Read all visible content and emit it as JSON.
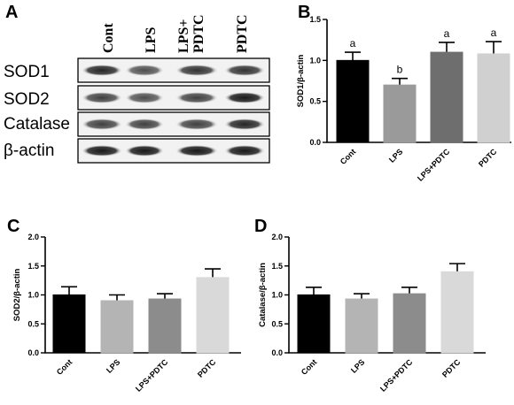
{
  "blot": {
    "panel_label": "A",
    "lanes": [
      "Cont",
      "LPS",
      "LPS+ PDTC",
      "PDTC"
    ],
    "lane_lines": [
      [
        "Cont"
      ],
      [
        "LPS"
      ],
      [
        "LPS+",
        "PDTC"
      ],
      [
        "PDTC"
      ]
    ],
    "rows": [
      {
        "label": "SOD1",
        "intensity": [
          0.85,
          0.7,
          0.8,
          0.8
        ]
      },
      {
        "label": "SOD2",
        "intensity": [
          0.75,
          0.7,
          0.75,
          0.9
        ]
      },
      {
        "label": "Catalase",
        "intensity": [
          0.75,
          0.75,
          0.75,
          0.85
        ]
      },
      {
        "label": "β-actin",
        "intensity": [
          0.9,
          0.9,
          0.9,
          0.9
        ]
      }
    ]
  },
  "chart_data": [
    {
      "panel_label": "B",
      "type": "bar",
      "categories": [
        "Cont",
        "LPS",
        "LPS+PDTC",
        "PDTC"
      ],
      "values": [
        1.0,
        0.7,
        1.1,
        1.08
      ],
      "errors": [
        0.1,
        0.08,
        0.12,
        0.15
      ],
      "significance": [
        "a",
        "b",
        "a",
        "a"
      ],
      "ylabel": "SOD1/β-actin",
      "ylim": [
        0,
        1.5
      ],
      "yticks": [
        "0.0",
        "0.5",
        "1.0",
        "1.5"
      ],
      "colors": [
        "#000000",
        "#9a9a9a",
        "#6e6e6e",
        "#d0d0d0"
      ]
    },
    {
      "panel_label": "C",
      "type": "bar",
      "categories": [
        "Cont",
        "LPS",
        "LPS+PDTC",
        "PDTC"
      ],
      "values": [
        1.0,
        0.9,
        0.93,
        1.3
      ],
      "errors": [
        0.14,
        0.1,
        0.09,
        0.15
      ],
      "ylabel": "SOD2/β-actin",
      "ylim": [
        0,
        2.0
      ],
      "yticks": [
        "0.0",
        "0.5",
        "1.0",
        "1.5",
        "2.0"
      ],
      "colors": [
        "#000000",
        "#b4b4b4",
        "#8c8c8c",
        "#d9d9d9"
      ]
    },
    {
      "panel_label": "D",
      "type": "bar",
      "categories": [
        "Cont",
        "LPS",
        "LPS+PDTC",
        "PDTC"
      ],
      "values": [
        1.0,
        0.93,
        1.02,
        1.4
      ],
      "errors": [
        0.13,
        0.09,
        0.11,
        0.14
      ],
      "ylabel": "Catalase/β-actin",
      "ylim": [
        0,
        2.0
      ],
      "yticks": [
        "0.0",
        "0.5",
        "1.0",
        "1.5",
        "2.0"
      ],
      "colors": [
        "#000000",
        "#b4b4b4",
        "#8c8c8c",
        "#d9d9d9"
      ]
    }
  ]
}
